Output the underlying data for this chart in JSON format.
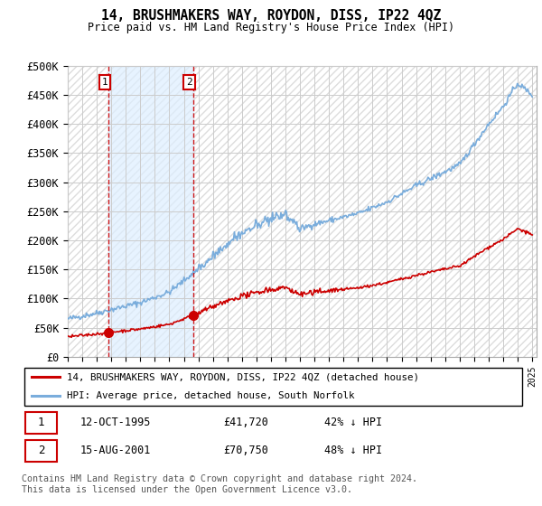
{
  "title": "14, BRUSHMAKERS WAY, ROYDON, DISS, IP22 4QZ",
  "subtitle": "Price paid vs. HM Land Registry's House Price Index (HPI)",
  "legend_line1": "14, BRUSHMAKERS WAY, ROYDON, DISS, IP22 4QZ (detached house)",
  "legend_line2": "HPI: Average price, detached house, South Norfolk",
  "footer": "Contains HM Land Registry data © Crown copyright and database right 2024.\nThis data is licensed under the Open Government Licence v3.0.",
  "ylim": [
    0,
    500000
  ],
  "yticks": [
    0,
    50000,
    100000,
    150000,
    200000,
    250000,
    300000,
    350000,
    400000,
    450000,
    500000
  ],
  "ytick_labels": [
    "£0",
    "£50K",
    "£100K",
    "£150K",
    "£200K",
    "£250K",
    "£300K",
    "£350K",
    "£400K",
    "£450K",
    "£500K"
  ],
  "transactions": [
    {
      "label": "1",
      "year": 1995.79,
      "price": 41720,
      "date_str": "12-OCT-1995",
      "price_str": "£41,720",
      "pct_str": "42% ↓ HPI"
    },
    {
      "label": "2",
      "year": 2001.62,
      "price": 70750,
      "date_str": "15-AUG-2001",
      "price_str": "£70,750",
      "pct_str": "48% ↓ HPI"
    }
  ],
  "red_line_color": "#cc0000",
  "blue_line_color": "#7aaddc",
  "shade_color": "#ddeeff",
  "grid_color": "#cccccc",
  "hatch_color": "#dddddd",
  "hatch_bg": "#f5f5f5"
}
